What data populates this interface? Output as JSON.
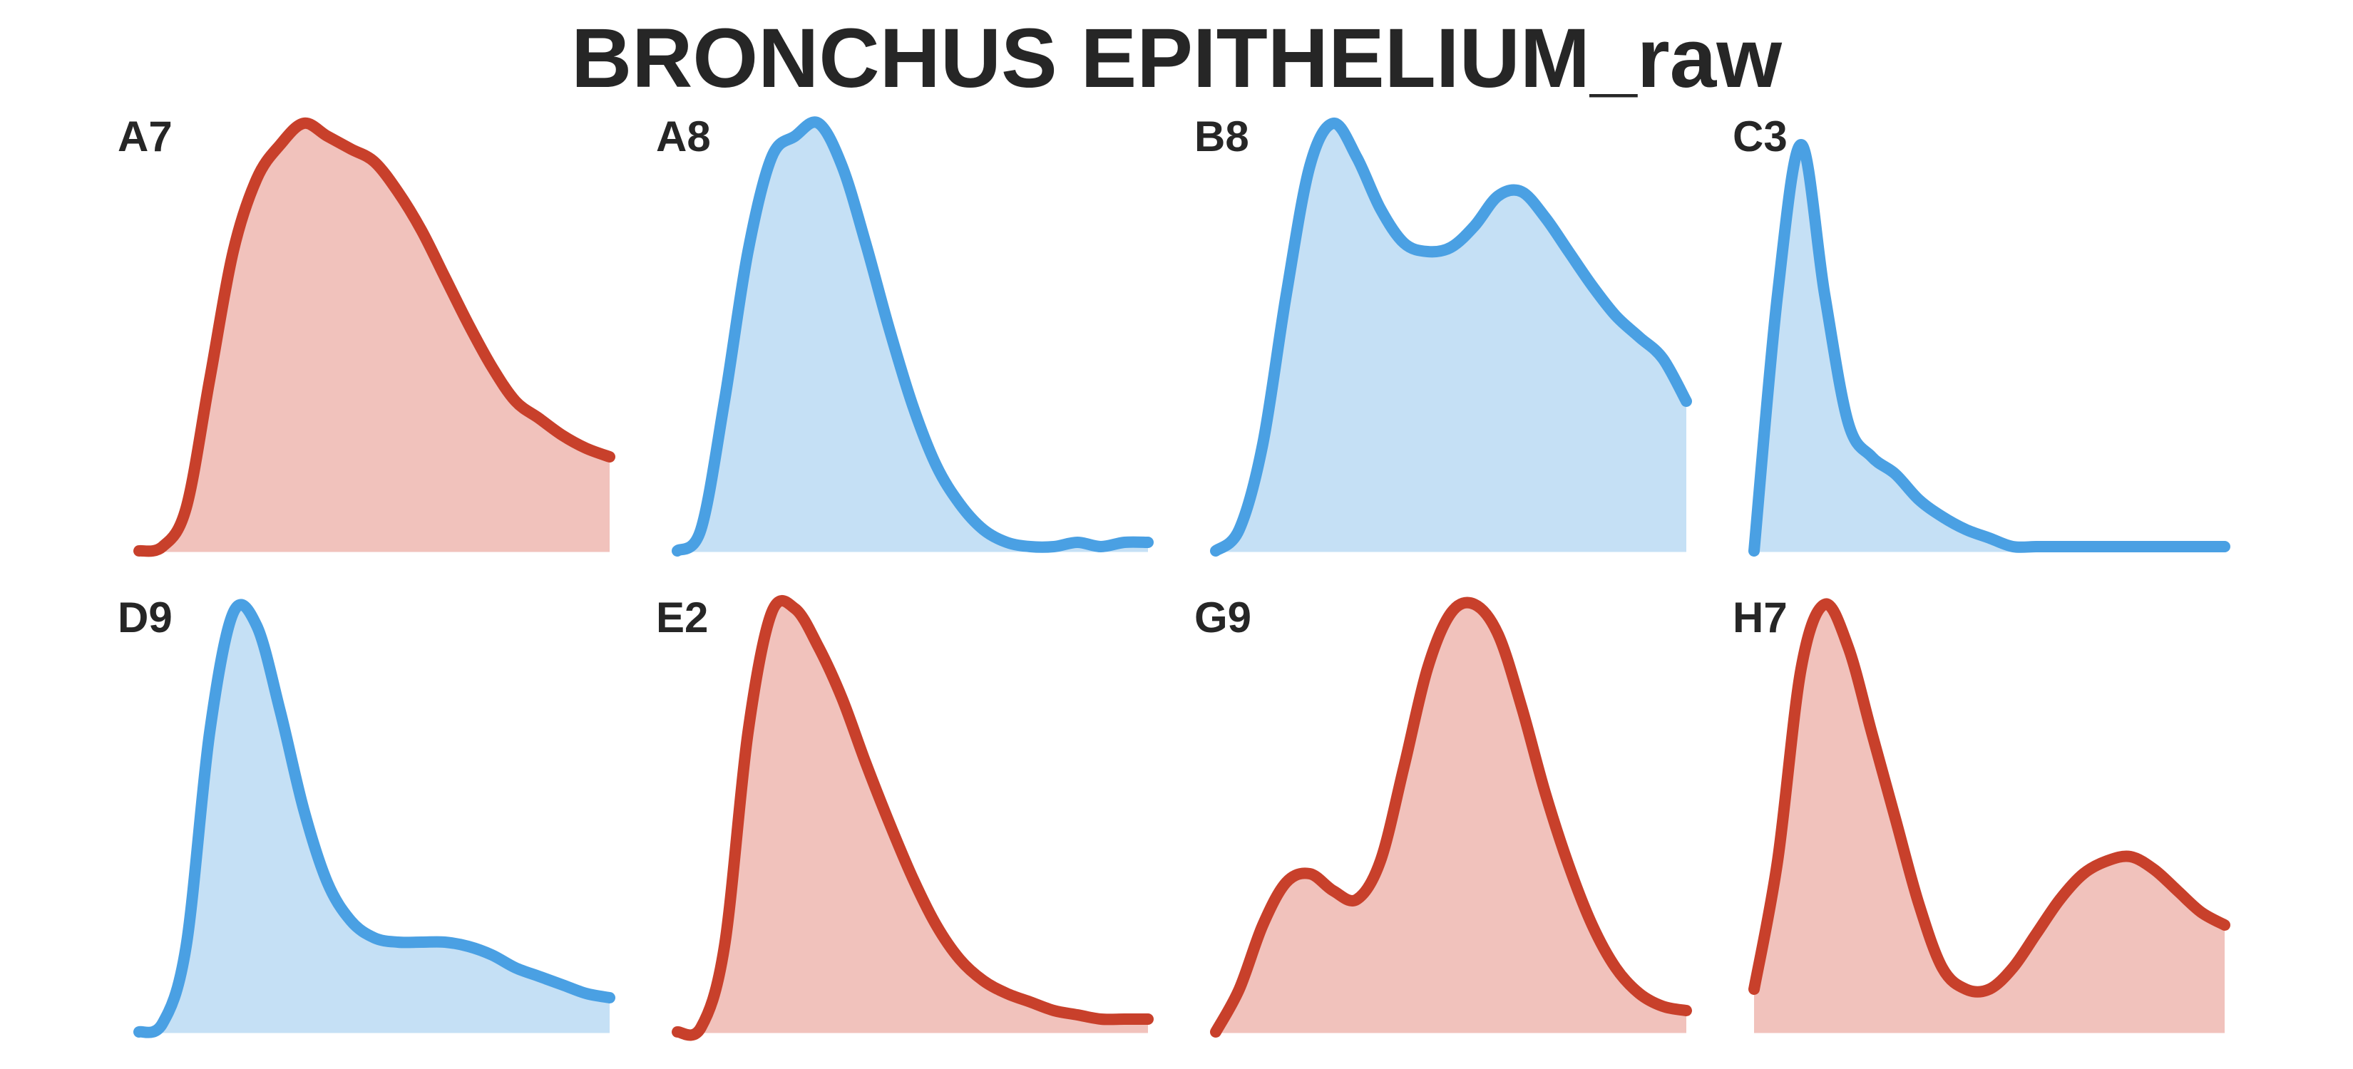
{
  "colors": {
    "red_line": "#c8402b",
    "red_fill": "#f1c2bc",
    "blue_line": "#4aa0e3",
    "blue_fill": "#c5e0f5",
    "text": "#262626",
    "background": "#ffffff"
  },
  "chart_data": {
    "type": "area",
    "title": "BRONCHUS EPITHELIUM_raw",
    "grid": false,
    "axes_visible": false,
    "layout": "2 rows x 4 columns of density curves",
    "panels": [
      {
        "label": "A7",
        "color": "red",
        "x": [
          0,
          0.05,
          0.1,
          0.15,
          0.2,
          0.25,
          0.3,
          0.35,
          0.4,
          0.45,
          0.5,
          0.55,
          0.6,
          0.65,
          0.7,
          0.75,
          0.8,
          0.85,
          0.9,
          0.95,
          1
        ],
        "y": [
          0,
          0.01,
          0.1,
          0.4,
          0.7,
          0.87,
          0.95,
          1,
          0.97,
          0.94,
          0.91,
          0.84,
          0.75,
          0.64,
          0.53,
          0.43,
          0.35,
          0.31,
          0.27,
          0.24,
          0.22
        ]
      },
      {
        "label": "A8",
        "color": "blue",
        "x": [
          0,
          0.05,
          0.1,
          0.15,
          0.2,
          0.25,
          0.3,
          0.35,
          0.4,
          0.45,
          0.5,
          0.55,
          0.6,
          0.65,
          0.7,
          0.75,
          0.8,
          0.85,
          0.9,
          0.95,
          1
        ],
        "y": [
          0,
          0.05,
          0.35,
          0.7,
          0.92,
          0.97,
          1,
          0.9,
          0.72,
          0.52,
          0.34,
          0.2,
          0.11,
          0.05,
          0.02,
          0.01,
          0.01,
          0.02,
          0.01,
          0.02,
          0.02
        ]
      },
      {
        "label": "B8",
        "color": "blue",
        "x": [
          0,
          0.05,
          0.1,
          0.15,
          0.2,
          0.25,
          0.3,
          0.35,
          0.4,
          0.45,
          0.5,
          0.55,
          0.6,
          0.65,
          0.7,
          0.75,
          0.8,
          0.85,
          0.9,
          0.95,
          1
        ],
        "y": [
          0,
          0.05,
          0.25,
          0.6,
          0.9,
          1,
          0.92,
          0.8,
          0.72,
          0.7,
          0.71,
          0.76,
          0.83,
          0.84,
          0.78,
          0.7,
          0.62,
          0.55,
          0.5,
          0.45,
          0.35
        ]
      },
      {
        "label": "C3",
        "color": "blue",
        "x": [
          0,
          0.05,
          0.1,
          0.15,
          0.2,
          0.25,
          0.3,
          0.35,
          0.4,
          0.45,
          0.5,
          0.55,
          0.6,
          0.65,
          0.7,
          0.75,
          0.8,
          0.85,
          0.9,
          0.95,
          1
        ],
        "y": [
          0,
          0.6,
          0.95,
          0.6,
          0.3,
          0.22,
          0.18,
          0.12,
          0.08,
          0.05,
          0.03,
          0.01,
          0.01,
          0.01,
          0.01,
          0.01,
          0.01,
          0.01,
          0.01,
          0.01,
          0.01
        ]
      },
      {
        "label": "D9",
        "color": "blue",
        "x": [
          0,
          0.05,
          0.1,
          0.15,
          0.2,
          0.25,
          0.3,
          0.35,
          0.4,
          0.45,
          0.5,
          0.55,
          0.6,
          0.65,
          0.7,
          0.75,
          0.8,
          0.85,
          0.9,
          0.95,
          1
        ],
        "y": [
          0,
          0.02,
          0.2,
          0.7,
          0.98,
          0.95,
          0.75,
          0.52,
          0.35,
          0.26,
          0.22,
          0.21,
          0.21,
          0.21,
          0.2,
          0.18,
          0.15,
          0.13,
          0.11,
          0.09,
          0.08
        ]
      },
      {
        "label": "E2",
        "color": "red",
        "x": [
          0,
          0.05,
          0.1,
          0.15,
          0.2,
          0.25,
          0.3,
          0.35,
          0.4,
          0.45,
          0.5,
          0.55,
          0.6,
          0.65,
          0.7,
          0.75,
          0.8,
          0.85,
          0.9,
          0.95,
          1
        ],
        "y": [
          0,
          0.01,
          0.2,
          0.7,
          0.98,
          0.99,
          0.9,
          0.78,
          0.63,
          0.49,
          0.36,
          0.25,
          0.17,
          0.12,
          0.09,
          0.07,
          0.05,
          0.04,
          0.03,
          0.03,
          0.03
        ]
      },
      {
        "label": "G9",
        "color": "red",
        "x": [
          0,
          0.05,
          0.1,
          0.15,
          0.2,
          0.25,
          0.3,
          0.35,
          0.4,
          0.45,
          0.5,
          0.55,
          0.6,
          0.65,
          0.7,
          0.75,
          0.8,
          0.85,
          0.9,
          0.95,
          1
        ],
        "y": [
          0,
          0.1,
          0.25,
          0.35,
          0.37,
          0.33,
          0.31,
          0.4,
          0.62,
          0.85,
          0.98,
          1,
          0.93,
          0.76,
          0.56,
          0.39,
          0.25,
          0.15,
          0.09,
          0.06,
          0.05
        ]
      },
      {
        "label": "H7",
        "color": "red",
        "x": [
          0,
          0.05,
          0.1,
          0.15,
          0.2,
          0.25,
          0.3,
          0.35,
          0.4,
          0.45,
          0.5,
          0.55,
          0.6,
          0.65,
          0.7,
          0.75,
          0.8,
          0.85,
          0.9,
          0.95,
          1
        ],
        "y": [
          0.1,
          0.4,
          0.85,
          1,
          0.9,
          0.7,
          0.5,
          0.3,
          0.15,
          0.1,
          0.1,
          0.15,
          0.23,
          0.31,
          0.37,
          0.4,
          0.41,
          0.38,
          0.33,
          0.28,
          0.25
        ]
      }
    ]
  }
}
